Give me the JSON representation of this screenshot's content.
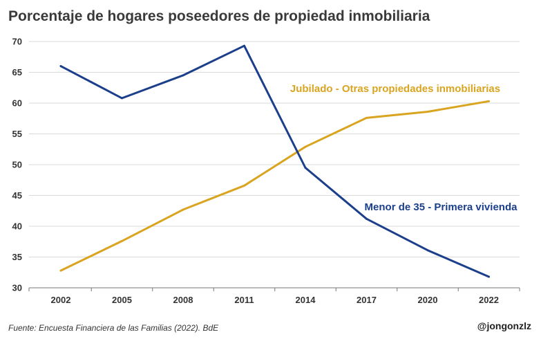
{
  "chart_data": {
    "type": "line",
    "title": "Porcentaje de hogares poseedores de propiedad inmobiliaria",
    "x": [
      "2002",
      "2005",
      "2008",
      "2011",
      "2014",
      "2017",
      "2020",
      "2022"
    ],
    "ylim": [
      30,
      70
    ],
    "yticks": [
      30,
      35,
      40,
      45,
      50,
      55,
      60,
      65,
      70
    ],
    "grid": true,
    "series": [
      {
        "name": "Jubilado - Otras propiedades inmobiliarias",
        "color": "#D9A520",
        "values": [
          32.8,
          37.6,
          42.7,
          46.6,
          52.9,
          57.6,
          58.6,
          60.3
        ]
      },
      {
        "name": "Menor de 35 - Primera vivienda",
        "color": "#1B3F8B",
        "values": [
          66.0,
          60.8,
          64.5,
          69.3,
          49.5,
          41.2,
          36.1,
          31.8
        ]
      }
    ]
  },
  "footer": {
    "source": "Fuente: Encuesta Financiera de las Familias (2022). BdE",
    "credit": "@jongonzlz"
  }
}
